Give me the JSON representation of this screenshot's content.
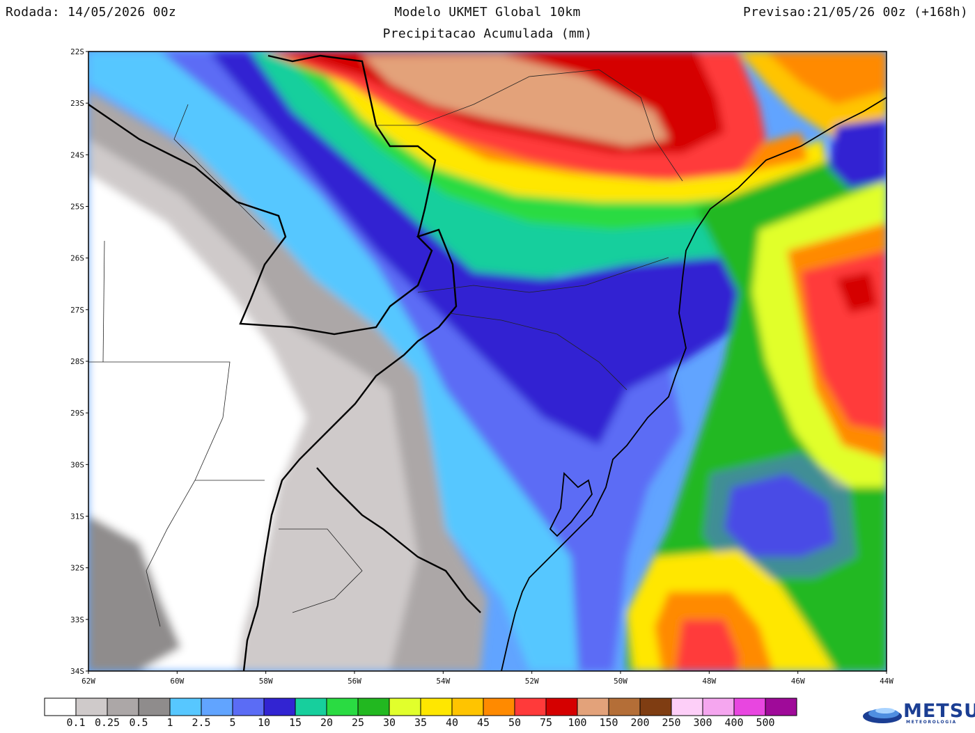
{
  "header": {
    "run": "Rodada: 14/05/2026 00z",
    "model": "Modelo UKMET Global 10km",
    "product": "Precipitacao Acumulada (mm)",
    "forecast": "Previsao:21/05/26 00z (+168h)"
  },
  "axes": {
    "lat_labels": [
      "22S",
      "23S",
      "24S",
      "25S",
      "26S",
      "27S",
      "28S",
      "29S",
      "30S",
      "31S",
      "32S",
      "33S",
      "34S"
    ],
    "lon_labels": [
      "62W",
      "60W",
      "58W",
      "56W",
      "54W",
      "52W",
      "50W",
      "48W",
      "46W",
      "44W"
    ]
  },
  "colorbar": {
    "colors": [
      "#ffffff",
      "#cfcaca",
      "#aca7a7",
      "#8f8c8c",
      "#57c7ff",
      "#61a4ff",
      "#5b6cf5",
      "#3224d2",
      "#17cf9d",
      "#2adb42",
      "#22b820",
      "#e1ff2c",
      "#ffe700",
      "#ffc400",
      "#ff8a00",
      "#ff3a3a",
      "#d50000",
      "#e3a27a",
      "#b46e37",
      "#7f3d12",
      "#fdcff8",
      "#f5a6ef",
      "#e846e0",
      "#9f0a99"
    ],
    "labels": [
      "0.1",
      "0.25",
      "0.5",
      "1",
      "2.5",
      "5",
      "10",
      "15",
      "20",
      "25",
      "30",
      "35",
      "40",
      "45",
      "50",
      "75",
      "100",
      "150",
      "200",
      "250",
      "300",
      "400",
      "500"
    ]
  },
  "logo": {
    "name": "METSUL",
    "tagline": "METEOROLOGIA"
  }
}
